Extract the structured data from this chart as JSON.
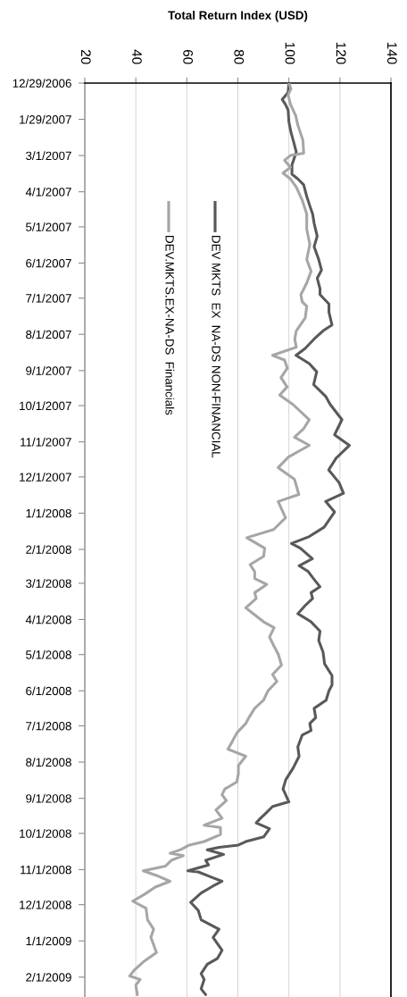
{
  "chart_data": {
    "type": "line",
    "orientation": "horizontal",
    "xlabel": "Total Return Index (USD)",
    "xlim": [
      20,
      140
    ],
    "xticks": [
      20,
      40,
      60,
      80,
      100,
      120,
      140
    ],
    "ylim": [
      "2009-02-18",
      "2006-12-29"
    ],
    "yticks": [
      {
        "value": "2006-12-29",
        "label": "12/29/2006"
      },
      {
        "value": "2007-01-29",
        "label": "1/29/2007"
      },
      {
        "value": "2007-03-01",
        "label": "3/1/2007"
      },
      {
        "value": "2007-04-01",
        "label": "4/1/2007"
      },
      {
        "value": "2007-05-01",
        "label": "5/1/2007"
      },
      {
        "value": "2007-06-01",
        "label": "6/1/2007"
      },
      {
        "value": "2007-07-01",
        "label": "7/1/2007"
      },
      {
        "value": "2007-08-01",
        "label": "8/1/2007"
      },
      {
        "value": "2007-09-01",
        "label": "9/1/2007"
      },
      {
        "value": "2007-10-01",
        "label": "10/1/2007"
      },
      {
        "value": "2007-11-01",
        "label": "11/1/2007"
      },
      {
        "value": "2007-12-01",
        "label": "12/1/2007"
      },
      {
        "value": "2008-01-01",
        "label": "1/1/2008"
      },
      {
        "value": "2008-02-01",
        "label": "2/1/2008"
      },
      {
        "value": "2008-03-01",
        "label": "3/1/2008"
      },
      {
        "value": "2008-04-01",
        "label": "4/1/2008"
      },
      {
        "value": "2008-05-01",
        "label": "5/1/2008"
      },
      {
        "value": "2008-06-01",
        "label": "6/1/2008"
      },
      {
        "value": "2008-07-01",
        "label": "7/1/2008"
      },
      {
        "value": "2008-08-01",
        "label": "8/1/2008"
      },
      {
        "value": "2008-09-01",
        "label": "9/1/2008"
      },
      {
        "value": "2008-10-01",
        "label": "10/1/2008"
      },
      {
        "value": "2008-11-01",
        "label": "11/1/2008"
      },
      {
        "value": "2008-12-01",
        "label": "12/1/2008"
      },
      {
        "value": "2009-01-01",
        "label": "1/1/2009"
      },
      {
        "value": "2009-02-01",
        "label": "2/1/2009"
      }
    ],
    "grid": "x",
    "legend": "top left",
    "series": [
      {
        "name": "DEV MKTS  EX  NA-DS NON-FINANCIAL",
        "color": "#595959",
        "x": [
          "2006-12-29",
          "2007-01-06",
          "2007-01-12",
          "2007-01-16",
          "2007-01-21",
          "2007-01-31",
          "2007-02-09",
          "2007-02-16",
          "2007-02-26",
          "2007-03-09",
          "2007-03-17",
          "2007-03-21",
          "2007-03-26",
          "2007-04-05",
          "2007-04-13",
          "2007-04-20",
          "2007-04-28",
          "2007-05-09",
          "2007-05-18",
          "2007-05-29",
          "2007-06-07",
          "2007-06-14",
          "2007-06-23",
          "2007-06-28",
          "2007-07-06",
          "2007-07-13",
          "2007-07-24",
          "2007-07-29",
          "2007-08-05",
          "2007-08-13",
          "2007-08-19",
          "2007-08-26",
          "2007-09-02",
          "2007-09-13",
          "2007-09-23",
          "2007-09-30",
          "2007-10-13",
          "2007-10-26",
          "2007-11-04",
          "2007-11-15",
          "2007-11-25",
          "2007-12-06",
          "2007-12-15",
          "2007-12-22",
          "2007-12-31",
          "2008-01-13",
          "2008-01-21",
          "2008-01-27",
          "2008-01-31",
          "2008-02-09",
          "2008-02-15",
          "2008-02-20",
          "2008-02-25",
          "2008-03-04",
          "2008-03-09",
          "2008-03-14",
          "2008-03-20",
          "2008-03-27",
          "2008-04-03",
          "2008-04-11",
          "2008-04-19",
          "2008-04-29",
          "2008-05-09",
          "2008-05-19",
          "2008-05-27",
          "2008-06-01",
          "2008-06-09",
          "2008-06-16",
          "2008-06-24",
          "2008-06-29",
          "2008-07-05",
          "2008-07-09",
          "2008-07-19",
          "2008-07-27",
          "2008-08-06",
          "2008-08-16",
          "2008-08-24",
          "2008-09-04",
          "2008-09-08",
          "2008-09-13",
          "2008-09-18",
          "2008-09-22",
          "2008-09-27",
          "2008-10-04",
          "2008-10-08",
          "2008-10-11",
          "2008-10-13",
          "2008-10-15",
          "2008-10-19",
          "2008-10-24",
          "2008-10-28",
          "2008-11-02",
          "2008-11-03",
          "2008-11-08",
          "2008-11-11",
          "2008-11-15",
          "2008-11-21",
          "2008-11-29",
          "2008-12-06",
          "2008-12-14",
          "2008-12-22",
          "2008-12-29",
          "2009-01-09",
          "2009-01-16",
          "2009-01-21",
          "2009-01-29",
          "2009-02-03",
          "2009-02-11",
          "2009-02-16"
        ],
        "values": [
          100,
          99.7,
          97.4,
          98.6,
          99.7,
          100,
          100.8,
          101.7,
          102.9,
          101.2,
          101.2,
          103.5,
          105.8,
          107,
          108.2,
          109.3,
          109.9,
          111.1,
          109.9,
          111.7,
          112.8,
          111.1,
          112.2,
          112.2,
          115.7,
          115.7,
          116.9,
          113.4,
          109.9,
          106.4,
          102.8,
          108,
          110.9,
          109.7,
          114.4,
          116.2,
          120.8,
          117.9,
          123.7,
          118.5,
          115.6,
          119.7,
          121.4,
          114.4,
          117.9,
          113.8,
          108,
          101,
          104.5,
          109.2,
          104,
          107.6,
          109.3,
          112.2,
          108.7,
          109.3,
          106.4,
          103.5,
          108.7,
          112.2,
          111.7,
          113.4,
          114,
          116.9,
          116.9,
          115.7,
          114.6,
          109.9,
          110.5,
          108.2,
          108.7,
          105.2,
          103.5,
          104,
          101.7,
          98.8,
          97.7,
          100,
          93.6,
          91.3,
          88.9,
          87.2,
          92.4,
          90.1,
          83.1,
          80.2,
          72.6,
          68,
          74.4,
          67.4,
          68.5,
          60.4,
          64.5,
          70.3,
          73.8,
          70.3,
          65.6,
          61.5,
          64.5,
          65.6,
          72.6,
          70.3,
          73.8,
          72,
          68,
          65.6,
          66.8,
          65.6,
          67.4
        ]
      },
      {
        "name": "DEV.MKTS.EX-NA-DS  Financials",
        "color": "#a6a6a6",
        "x": [
          "2006-12-29",
          "2007-01-03",
          "2007-01-08",
          "2007-01-16",
          "2007-01-26",
          "2007-02-03",
          "2007-02-16",
          "2007-02-27",
          "2007-03-01",
          "2007-03-05",
          "2007-03-11",
          "2007-03-16",
          "2007-03-21",
          "2007-03-28",
          "2007-04-08",
          "2007-04-20",
          "2007-05-03",
          "2007-05-16",
          "2007-05-29",
          "2007-06-08",
          "2007-06-18",
          "2007-06-28",
          "2007-07-04",
          "2007-07-08",
          "2007-07-18",
          "2007-07-29",
          "2007-08-05",
          "2007-08-12",
          "2007-08-19",
          "2007-08-23",
          "2007-08-30",
          "2007-09-07",
          "2007-09-15",
          "2007-09-22",
          "2007-09-30",
          "2007-10-13",
          "2007-10-21",
          "2007-10-28",
          "2007-11-04",
          "2007-11-14",
          "2007-11-23",
          "2007-12-03",
          "2007-12-16",
          "2007-12-22",
          "2008-01-05",
          "2008-01-15",
          "2008-01-22",
          "2008-01-31",
          "2008-02-07",
          "2008-02-14",
          "2008-02-20",
          "2008-02-26",
          "2008-03-02",
          "2008-03-09",
          "2008-03-14",
          "2008-03-22",
          "2008-03-28",
          "2008-04-03",
          "2008-04-08",
          "2008-04-16",
          "2008-04-24",
          "2008-05-01",
          "2008-05-10",
          "2008-05-18",
          "2008-05-24",
          "2008-06-01",
          "2008-06-09",
          "2008-06-16",
          "2008-06-24",
          "2008-06-29",
          "2008-07-07",
          "2008-07-14",
          "2008-07-21",
          "2008-07-27",
          "2008-08-04",
          "2008-08-11",
          "2008-08-18",
          "2008-08-24",
          "2008-08-29",
          "2008-09-03",
          "2008-09-11",
          "2008-09-18",
          "2008-09-24",
          "2008-09-26",
          "2008-10-02",
          "2008-10-08",
          "2008-10-11",
          "2008-10-15",
          "2008-10-18",
          "2008-10-20",
          "2008-10-24",
          "2008-10-29",
          "2008-11-02",
          "2008-11-06",
          "2008-11-11",
          "2008-11-16",
          "2008-11-22",
          "2008-11-28",
          "2008-12-04",
          "2008-12-14",
          "2008-12-22",
          "2008-12-29",
          "2009-01-11",
          "2009-01-19",
          "2009-01-26",
          "2009-01-31",
          "2009-02-03",
          "2009-02-08",
          "2009-02-16"
        ],
        "values": [
          100,
          100.8,
          99.7,
          100.6,
          102.7,
          103.5,
          105.5,
          105.8,
          100.6,
          98.3,
          100.6,
          97.7,
          100.6,
          102.9,
          105.2,
          107,
          107,
          108.2,
          107,
          108.7,
          107,
          104.7,
          105.2,
          107,
          106.4,
          102.9,
          102.3,
          102.9,
          93.6,
          98.3,
          99.4,
          96.9,
          99.3,
          96.4,
          101.6,
          108,
          105.7,
          102.2,
          108,
          99.8,
          95.8,
          102.2,
          103.9,
          95.8,
          98.7,
          94,
          83.5,
          90.5,
          90.1,
          84.8,
          86.6,
          86.6,
          91.3,
          86.6,
          87.2,
          83.1,
          86.6,
          90.1,
          94.2,
          92.4,
          94.2,
          95.9,
          97.1,
          93.6,
          95.3,
          91.8,
          90.1,
          86.6,
          84.3,
          83.1,
          79.6,
          77.9,
          76.1,
          83.1,
          80.2,
          80.2,
          79.6,
          74.9,
          73.8,
          75.5,
          71.4,
          73.8,
          66.8,
          73.2,
          73.2,
          66.8,
          61,
          57.5,
          53.4,
          58.6,
          54,
          51.6,
          42.9,
          48.1,
          53.4,
          47.6,
          43.5,
          38.8,
          44,
          44.6,
          47,
          45.9,
          48.1,
          42.9,
          39.4,
          37.6,
          41.7,
          40,
          40.6
        ]
      }
    ]
  }
}
